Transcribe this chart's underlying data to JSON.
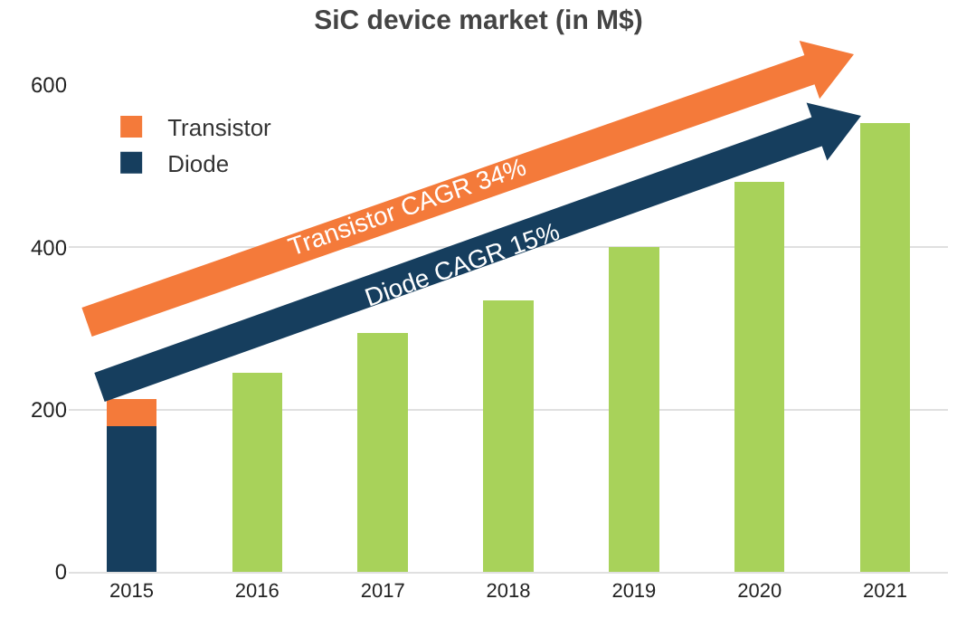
{
  "chart_data": {
    "type": "bar",
    "title": "SiC device market (in M$)",
    "categories": [
      "2015",
      "2016",
      "2017",
      "2018",
      "2019",
      "2020",
      "2021"
    ],
    "series": [
      {
        "name": "Diode",
        "color": "#163e5e",
        "values": [
          180,
          null,
          null,
          null,
          null,
          null,
          null
        ]
      },
      {
        "name": "Transistor",
        "color": "#f47a3a",
        "values": [
          33,
          null,
          null,
          null,
          null,
          null,
          null
        ]
      },
      {
        "color": "#a8d25a",
        "values": [
          null,
          245,
          294,
          335,
          400,
          481,
          553
        ]
      }
    ],
    "stacked": true,
    "ylim": [
      0,
      600
    ],
    "yticks": [
      0,
      200,
      400,
      600
    ],
    "grid": "y",
    "legend": "top left",
    "annotations": [
      "Transistor CAGR 34%",
      "Diode CAGR 15%"
    ]
  }
}
